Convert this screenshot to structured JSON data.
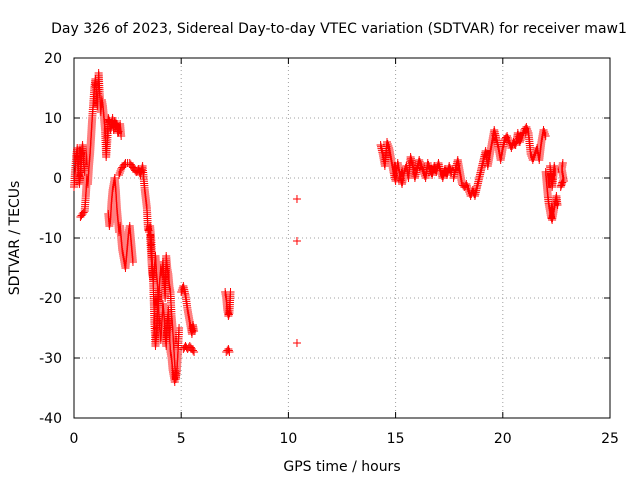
{
  "chart_data": {
    "type": "scatter",
    "title": "Day 326 of 2023, Sidereal Day-to-day VTEC variation (SDTVAR) for receiver maw1",
    "xlabel": "GPS time / hours",
    "ylabel": "SDTVAR / TECUs",
    "xlim": [
      0,
      25
    ],
    "ylim": [
      -40,
      20
    ],
    "x_ticks": [
      0,
      5,
      10,
      15,
      20,
      25
    ],
    "y_ticks": [
      -40,
      -30,
      -20,
      -10,
      0,
      10,
      20
    ],
    "x_tick_labels": [
      "0",
      "5",
      "10",
      "15",
      "20",
      "25"
    ],
    "y_tick_labels": [
      "-40",
      "-30",
      "-20",
      "-10",
      "0",
      "10",
      "20"
    ],
    "grid": true,
    "marker": "+",
    "color": "#ff0000",
    "series": [
      {
        "name": "SDTVAR",
        "segments": [
          [
            [
              0.0,
              -1.5
            ],
            [
              0.05,
              1.0
            ],
            [
              0.1,
              3.5
            ],
            [
              0.15,
              5.0
            ],
            [
              0.2,
              2.0
            ],
            [
              0.25,
              -1.0
            ],
            [
              0.3,
              0.5
            ],
            [
              0.35,
              4.0
            ],
            [
              0.4,
              5.5
            ],
            [
              0.45,
              2.5
            ],
            [
              0.5,
              1.0
            ]
          ],
          [
            [
              0.3,
              -6.5
            ],
            [
              0.4,
              -6.0
            ],
            [
              0.5,
              -5.5
            ],
            [
              0.55,
              -3.0
            ],
            [
              0.6,
              0.0
            ],
            [
              0.65,
              -1.0
            ],
            [
              0.7,
              2.0
            ],
            [
              0.75,
              4.0
            ],
            [
              0.8,
              7.0
            ],
            [
              0.85,
              10.0
            ],
            [
              0.9,
              12.5
            ],
            [
              0.95,
              15.0
            ],
            [
              1.0,
              16.5
            ],
            [
              1.05,
              14.0
            ],
            [
              1.1,
              12.0
            ],
            [
              1.15,
              17.5
            ],
            [
              1.2,
              14.0
            ],
            [
              1.25,
              11.0
            ],
            [
              1.3,
              13.0
            ],
            [
              1.35,
              12.0
            ],
            [
              1.4,
              10.0
            ],
            [
              1.45,
              8.0
            ],
            [
              1.5,
              3.5
            ],
            [
              1.55,
              6.0
            ],
            [
              1.6,
              10.0
            ],
            [
              1.65,
              9.5
            ],
            [
              1.7,
              8.0
            ],
            [
              1.75,
              9.0
            ],
            [
              1.8,
              10.0
            ],
            [
              1.85,
              8.0
            ],
            [
              1.9,
              9.5
            ],
            [
              1.95,
              8.5
            ],
            [
              2.0,
              9.0
            ],
            [
              2.05,
              7.5
            ],
            [
              2.1,
              8.0
            ],
            [
              2.15,
              9.0
            ],
            [
              2.2,
              7.0
            ]
          ],
          [
            [
              1.6,
              -6.0
            ],
            [
              1.65,
              -8.0
            ],
            [
              1.7,
              -7.0
            ],
            [
              1.75,
              -4.0
            ],
            [
              1.8,
              -2.0
            ],
            [
              1.85,
              -1.0
            ],
            [
              1.9,
              0.0
            ],
            [
              1.95,
              -2.0
            ],
            [
              2.0,
              -5.0
            ],
            [
              2.05,
              -7.0
            ],
            [
              2.1,
              -9.0
            ],
            [
              2.15,
              -8.0
            ],
            [
              2.2,
              -10.0
            ],
            [
              2.25,
              -12.0
            ],
            [
              2.3,
              -13.0
            ],
            [
              2.35,
              -14.0
            ],
            [
              2.4,
              -15.0
            ],
            [
              2.45,
              -13.0
            ],
            [
              2.5,
              -11.0
            ],
            [
              2.55,
              -9.0
            ],
            [
              2.6,
              -8.0
            ],
            [
              2.65,
              -10.0
            ],
            [
              2.7,
              -12.0
            ],
            [
              2.75,
              -14.0
            ]
          ],
          [
            [
              2.1,
              0.5
            ],
            [
              2.2,
              1.5
            ],
            [
              2.3,
              2.0
            ],
            [
              2.4,
              2.5
            ],
            [
              2.5,
              2.5
            ],
            [
              2.6,
              2.5
            ],
            [
              2.7,
              2.0
            ],
            [
              2.8,
              1.5
            ],
            [
              2.9,
              1.0
            ],
            [
              3.0,
              1.5
            ],
            [
              3.1,
              0.5
            ],
            [
              3.2,
              2.0
            ],
            [
              3.3,
              -2.0
            ],
            [
              3.4,
              -5.0
            ],
            [
              3.45,
              -8.5
            ],
            [
              3.5,
              -9.0
            ],
            [
              3.55,
              -8.0
            ],
            [
              3.6,
              -10.0
            ],
            [
              3.65,
              -14.0
            ],
            [
              3.7,
              -18.0
            ],
            [
              3.75,
              -24.0
            ],
            [
              3.8,
              -28.0
            ],
            [
              3.85,
              -26.0
            ],
            [
              3.9,
              -22.0
            ],
            [
              3.95,
              -20.0
            ],
            [
              4.0,
              -17.0
            ],
            [
              4.05,
              -15.0
            ],
            [
              4.1,
              -16.0
            ],
            [
              4.15,
              -14.0
            ],
            [
              4.2,
              -17.0
            ],
            [
              4.25,
              -20.0
            ],
            [
              4.3,
              -13.0
            ],
            [
              4.35,
              -15.0
            ],
            [
              4.4,
              -16.0
            ],
            [
              4.45,
              -18.0
            ],
            [
              4.5,
              -19.0
            ],
            [
              4.55,
              -23.0
            ],
            [
              4.6,
              -25.0
            ],
            [
              4.65,
              -28.0
            ],
            [
              4.7,
              -31.0
            ],
            [
              4.75,
              -33.5
            ],
            [
              4.8,
              -32.0
            ],
            [
              4.85,
              -29.0
            ],
            [
              4.9,
              -25.0
            ]
          ],
          [
            [
              3.55,
              -9.5
            ],
            [
              3.6,
              -13.0
            ],
            [
              3.65,
              -16.0
            ],
            [
              3.7,
              -17.0
            ],
            [
              3.75,
              -15.0
            ],
            [
              3.8,
              -13.0
            ],
            [
              3.85,
              -16.0
            ],
            [
              3.9,
              -18.0
            ],
            [
              3.95,
              -22.0
            ],
            [
              4.0,
              -25.0
            ],
            [
              4.05,
              -27.0
            ],
            [
              4.1,
              -24.0
            ],
            [
              4.15,
              -21.0
            ],
            [
              4.2,
              -23.0
            ],
            [
              4.25,
              -26.0
            ],
            [
              4.3,
              -28.0
            ],
            [
              4.35,
              -24.0
            ],
            [
              4.4,
              -22.0
            ],
            [
              4.45,
              -26.0
            ],
            [
              4.5,
              -29.0
            ],
            [
              4.55,
              -30.0
            ],
            [
              4.6,
              -32.0
            ],
            [
              4.65,
              -33.0
            ],
            [
              4.7,
              -34.0
            ]
          ],
          [
            [
              5.0,
              -19.0
            ],
            [
              5.1,
              -18.0
            ],
            [
              5.2,
              -19.5
            ],
            [
              5.3,
              -22.0
            ],
            [
              5.4,
              -24.0
            ],
            [
              5.45,
              -25.0
            ],
            [
              5.5,
              -26.0
            ],
            [
              5.55,
              -24.5
            ],
            [
              5.6,
              -25.5
            ]
          ],
          [
            [
              5.1,
              -28.5
            ],
            [
              5.2,
              -28.0
            ],
            [
              5.3,
              -28.5
            ],
            [
              5.4,
              -28.0
            ],
            [
              5.5,
              -28.5
            ],
            [
              5.6,
              -29.0
            ]
          ],
          [
            [
              7.05,
              -19.0
            ],
            [
              7.1,
              -20.0
            ],
            [
              7.15,
              -22.0
            ],
            [
              7.2,
              -23.0
            ],
            [
              7.25,
              -22.5
            ],
            [
              7.3,
              -19.0
            ]
          ],
          [
            [
              7.1,
              -29.0
            ],
            [
              7.2,
              -28.5
            ],
            [
              7.25,
              -29.0
            ]
          ],
          [
            [
              10.4,
              -3.5
            ],
            [
              10.4,
              -10.5
            ],
            [
              10.4,
              -27.5
            ]
          ],
          [
            [
              14.3,
              5.5
            ],
            [
              14.4,
              4.0
            ],
            [
              14.5,
              2.0
            ],
            [
              14.6,
              6.0
            ],
            [
              14.7,
              5.0
            ],
            [
              14.8,
              3.0
            ],
            [
              14.9,
              1.0
            ],
            [
              15.0,
              -0.5
            ],
            [
              15.1,
              2.5
            ],
            [
              15.2,
              0.5
            ],
            [
              15.3,
              -1.0
            ],
            [
              15.4,
              1.0
            ],
            [
              15.5,
              2.0
            ],
            [
              15.6,
              0.0
            ],
            [
              15.7,
              3.5
            ],
            [
              15.8,
              2.0
            ],
            [
              15.9,
              0.0
            ],
            [
              16.0,
              1.5
            ],
            [
              16.1,
              3.0
            ],
            [
              16.2,
              2.0
            ],
            [
              16.3,
              1.0
            ],
            [
              16.4,
              0.0
            ],
            [
              16.5,
              2.5
            ],
            [
              16.6,
              1.5
            ],
            [
              16.7,
              0.5
            ],
            [
              16.8,
              2.0
            ],
            [
              16.9,
              1.0
            ],
            [
              17.0,
              2.5
            ],
            [
              17.1,
              1.0
            ],
            [
              17.2,
              0.0
            ],
            [
              17.3,
              1.5
            ],
            [
              17.4,
              0.5
            ],
            [
              17.5,
              2.0
            ],
            [
              17.6,
              1.0
            ]
          ],
          [
            [
              17.7,
              0.0
            ],
            [
              17.8,
              1.5
            ],
            [
              17.9,
              3.0
            ],
            [
              18.0,
              1.0
            ],
            [
              18.1,
              -1.0
            ],
            [
              18.2,
              -1.5
            ],
            [
              18.3,
              -1.0
            ],
            [
              18.4,
              -2.0
            ],
            [
              18.5,
              -3.0
            ],
            [
              18.6,
              -2.0
            ],
            [
              18.7,
              -3.0
            ],
            [
              18.8,
              -1.5
            ],
            [
              18.9,
              0.0
            ],
            [
              19.0,
              1.5
            ],
            [
              19.1,
              3.0
            ],
            [
              19.2,
              4.5
            ],
            [
              19.3,
              2.0
            ],
            [
              19.4,
              4.0
            ],
            [
              19.5,
              6.0
            ],
            [
              19.6,
              8.0
            ],
            [
              19.7,
              6.5
            ],
            [
              19.8,
              5.0
            ],
            [
              19.9,
              3.0
            ],
            [
              20.0,
              5.0
            ],
            [
              20.1,
              6.5
            ],
            [
              20.2,
              7.0
            ],
            [
              20.3,
              6.0
            ],
            [
              20.4,
              5.0
            ],
            [
              20.5,
              6.0
            ],
            [
              20.6,
              5.5
            ],
            [
              20.7,
              7.5
            ],
            [
              20.8,
              6.0
            ],
            [
              20.9,
              7.0
            ],
            [
              21.0,
              8.0
            ],
            [
              21.1,
              8.5
            ],
            [
              21.2,
              7.5
            ],
            [
              21.3,
              4.0
            ],
            [
              21.4,
              3.0
            ],
            [
              21.5,
              4.0
            ],
            [
              21.6,
              5.0
            ],
            [
              21.7,
              3.0
            ],
            [
              21.8,
              6.0
            ],
            [
              21.9,
              8.0
            ],
            [
              22.0,
              7.0
            ]
          ],
          [
            [
              22.0,
              1.0
            ],
            [
              22.05,
              -1.0
            ],
            [
              22.1,
              -3.0
            ],
            [
              22.15,
              -4.5
            ],
            [
              22.2,
              -5.5
            ],
            [
              22.25,
              -6.5
            ],
            [
              22.3,
              -7.0
            ],
            [
              22.35,
              -6.0
            ],
            [
              22.4,
              -5.0
            ],
            [
              22.45,
              -4.0
            ],
            [
              22.5,
              -3.0
            ],
            [
              22.55,
              -4.5
            ]
          ],
          [
            [
              22.2,
              2.0
            ],
            [
              22.25,
              0.5
            ],
            [
              22.3,
              -1.5
            ],
            [
              22.35,
              0.0
            ],
            [
              22.4,
              2.0
            ],
            [
              22.45,
              1.0
            ]
          ],
          [
            [
              22.7,
              -1.5
            ],
            [
              22.75,
              -1.0
            ],
            [
              22.8,
              -0.5
            ],
            [
              22.85,
              -0.5
            ],
            [
              22.75,
              1.5
            ],
            [
              22.8,
              2.5
            ]
          ]
        ]
      }
    ]
  }
}
